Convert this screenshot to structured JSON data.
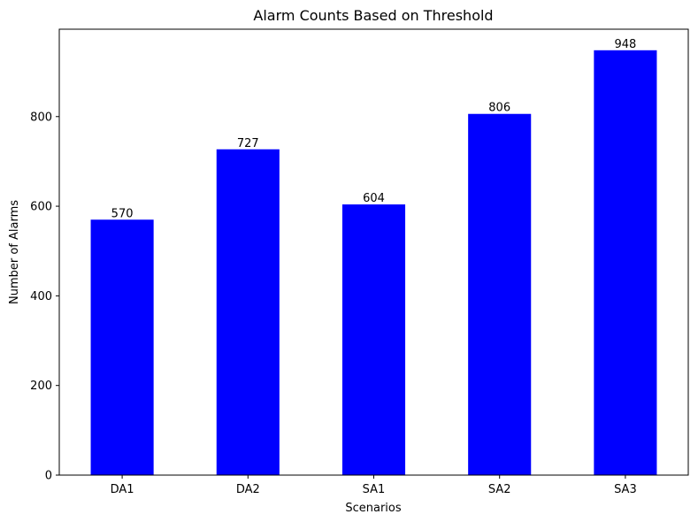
{
  "chart_data": {
    "type": "bar",
    "title": "Alarm Counts Based on Threshold",
    "xlabel": "Scenarios",
    "ylabel": "Number of Alarms",
    "categories": [
      "DA1",
      "DA2",
      "SA1",
      "SA2",
      "SA3"
    ],
    "values": [
      570,
      727,
      604,
      806,
      948
    ],
    "ylim": [
      0,
      995
    ],
    "yticks": [
      0,
      200,
      400,
      600,
      800
    ],
    "grid": false,
    "legend": "none",
    "bar_color": "#0000ff"
  }
}
